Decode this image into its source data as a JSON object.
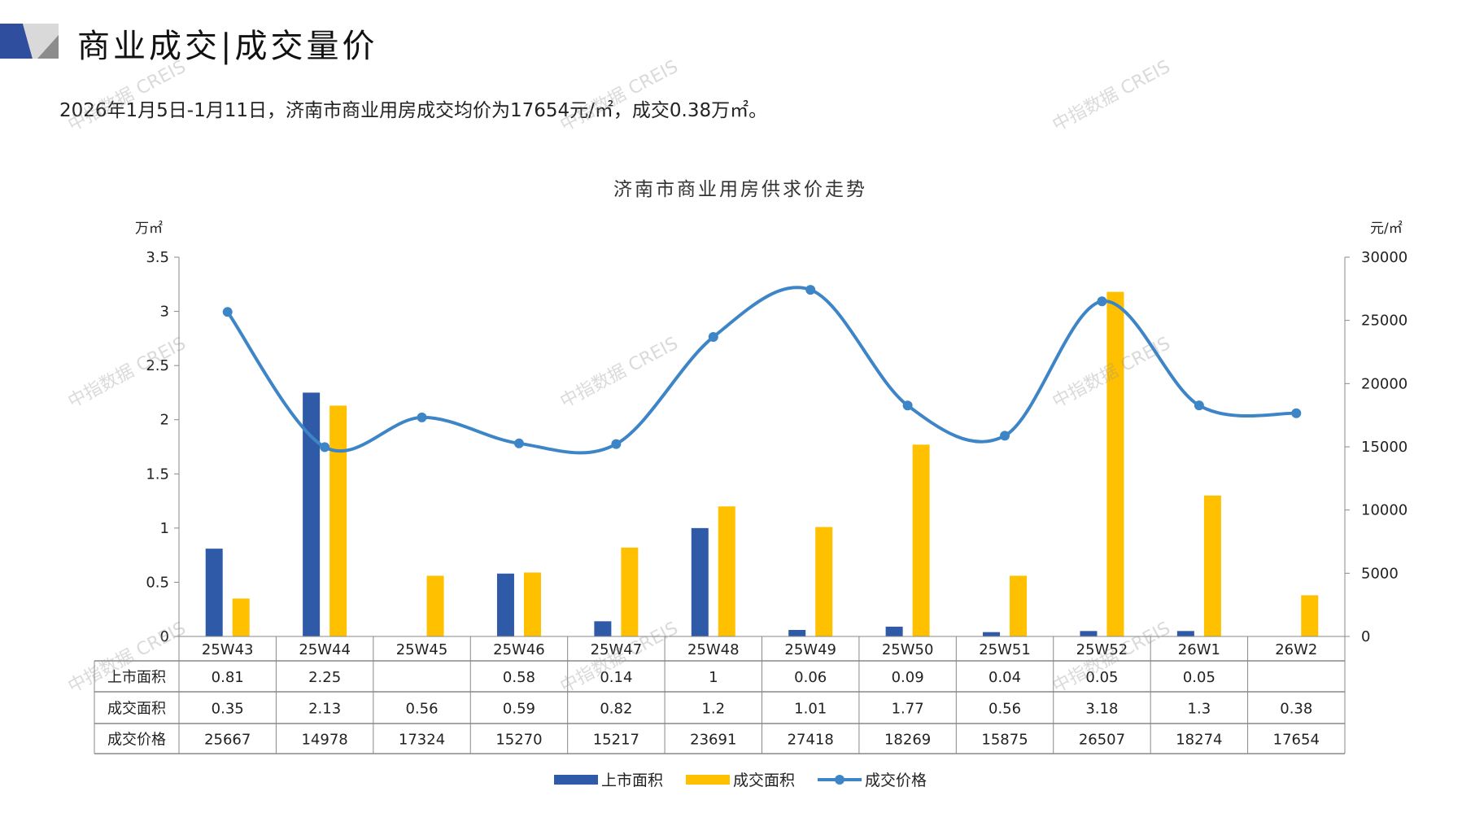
{
  "header": {
    "title": "商业成交|成交量价",
    "subtitle": "2026年1月5日-1月11日，济南市商业用房成交均价为17654元/㎡，成交0.38万㎡。"
  },
  "watermark": "中指数据 CREIS",
  "chart_data": {
    "type": "bar+line",
    "title": "济南市商业用房供求价走势",
    "ylabel": "万㎡",
    "y2label": "元/㎡",
    "ylim": [
      0,
      3.5
    ],
    "y2lim": [
      0,
      30000
    ],
    "yticks": [
      "0",
      "0.5",
      "1",
      "1.5",
      "2",
      "2.5",
      "3",
      "3.5"
    ],
    "y2ticks": [
      "0",
      "5000",
      "10000",
      "15000",
      "20000",
      "25000",
      "30000"
    ],
    "categories": [
      "25W43",
      "25W44",
      "25W45",
      "25W46",
      "25W47",
      "25W48",
      "25W49",
      "25W50",
      "25W51",
      "25W52",
      "26W1",
      "26W2"
    ],
    "series": [
      {
        "name": "上市面积",
        "type": "bar",
        "axis": "left",
        "color": "#2f5aa8",
        "values": [
          0.81,
          2.25,
          null,
          0.58,
          0.14,
          1,
          0.06,
          0.09,
          0.04,
          0.05,
          0.05,
          null
        ],
        "labels": [
          "0.81",
          "2.25",
          "",
          "0.58",
          "0.14",
          "1",
          "0.06",
          "0.09",
          "0.04",
          "0.05",
          "0.05",
          ""
        ]
      },
      {
        "name": "成交面积",
        "type": "bar",
        "axis": "left",
        "color": "#ffc000",
        "values": [
          0.35,
          2.13,
          0.56,
          0.59,
          0.82,
          1.2,
          1.01,
          1.77,
          0.56,
          3.18,
          1.3,
          0.38
        ],
        "labels": [
          "0.35",
          "2.13",
          "0.56",
          "0.59",
          "0.82",
          "1.2",
          "1.01",
          "1.77",
          "0.56",
          "3.18",
          "1.3",
          "0.38"
        ]
      },
      {
        "name": "成交价格",
        "type": "line",
        "axis": "right",
        "color": "#3d85c6",
        "values": [
          25667,
          14978,
          17324,
          15270,
          15217,
          23691,
          27418,
          18269,
          15875,
          26507,
          18274,
          17654
        ],
        "labels": [
          "25667",
          "14978",
          "17324",
          "15270",
          "15217",
          "23691",
          "27418",
          "18269",
          "15875",
          "26507",
          "18274",
          "17654"
        ]
      }
    ],
    "legend": "bottom"
  }
}
